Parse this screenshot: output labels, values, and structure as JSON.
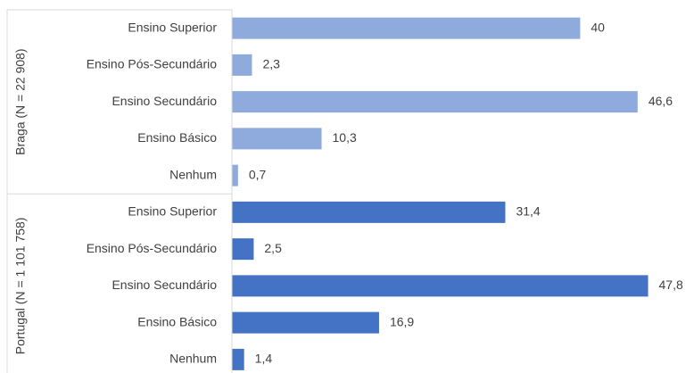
{
  "chart_data": {
    "type": "bar",
    "orientation": "horizontal",
    "xlim": [
      0,
      50
    ],
    "groups": [
      {
        "name": "Braga (N = 22 908)",
        "color": "#8faadc",
        "categories": [
          "Ensino Superior",
          "Ensino Pós-Secundário",
          "Ensino Secundário",
          "Ensino Básico",
          "Nenhum"
        ],
        "values": [
          40,
          2.3,
          46.6,
          10.3,
          0.7
        ],
        "value_labels": [
          "40",
          "2,3",
          "46,6",
          "10,3",
          "0,7"
        ]
      },
      {
        "name": "Portugal (N = 1 101 758)",
        "color": "#4472c4",
        "categories": [
          "Ensino Superior",
          "Ensino Pós-Secundário",
          "Ensino Secundário",
          "Ensino Básico",
          "Nenhum"
        ],
        "values": [
          31.4,
          2.5,
          47.8,
          16.9,
          1.4
        ],
        "value_labels": [
          "31,4",
          "2,5",
          "47,8",
          "16,9",
          "1,4"
        ]
      }
    ]
  }
}
